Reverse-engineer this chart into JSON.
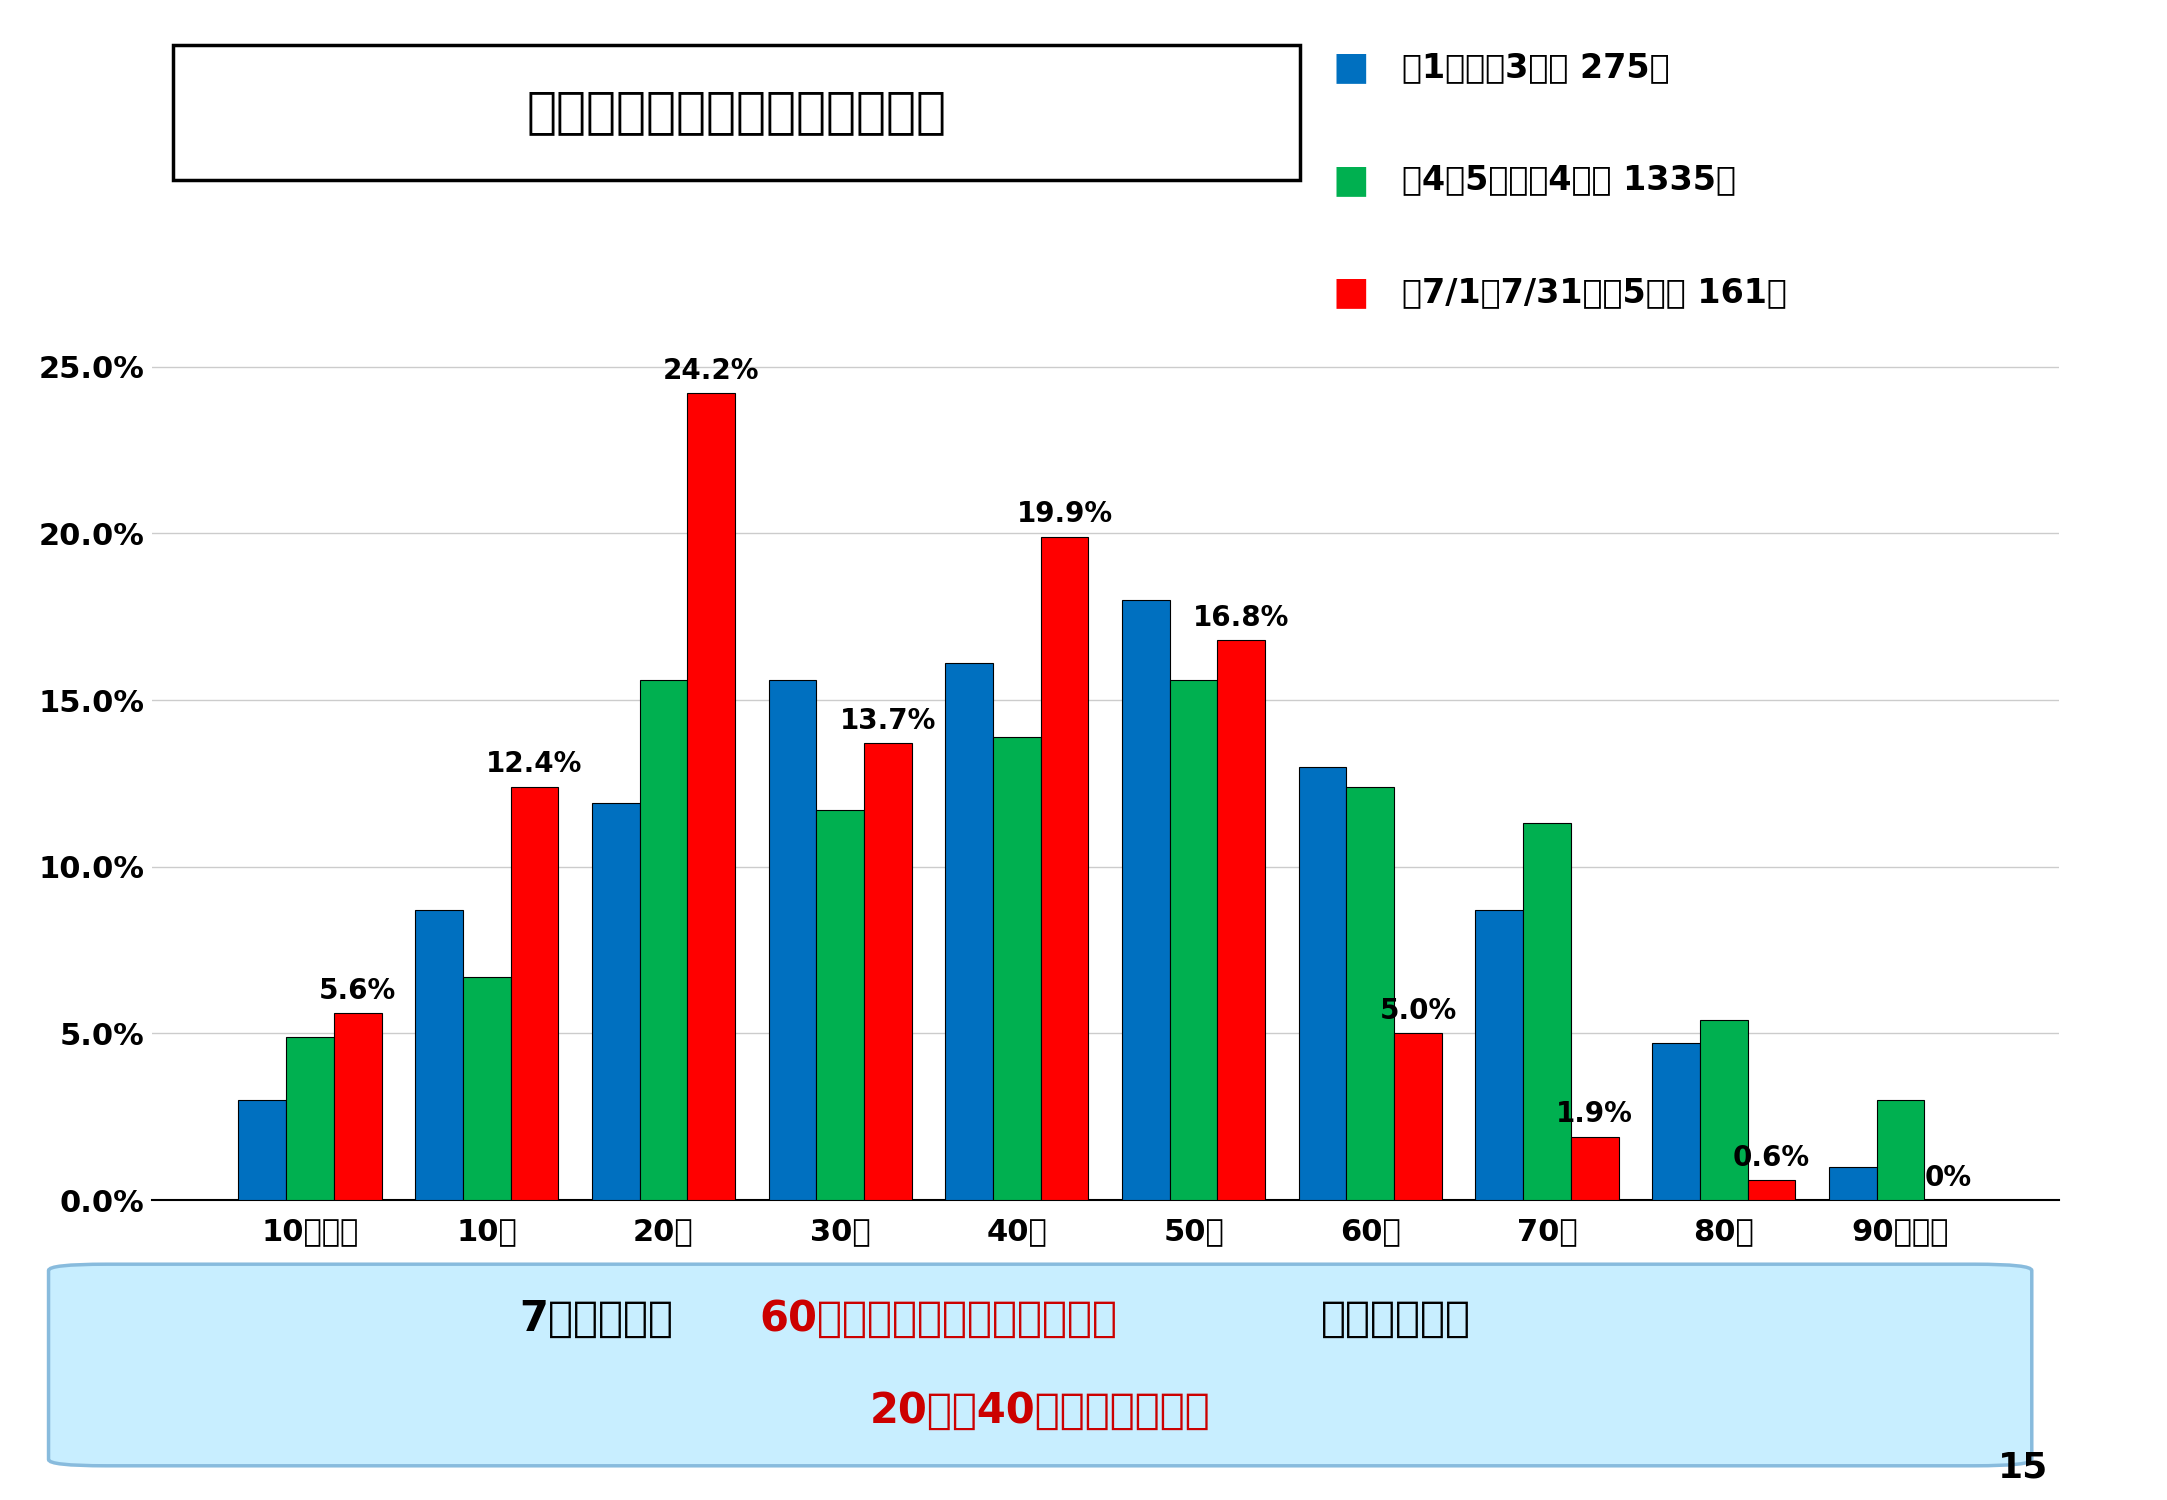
{
  "title": "市内感染者の年代別割合の推移",
  "categories": [
    "10歳未満",
    "10代",
    "20代",
    "30代",
    "40代",
    "50代",
    "60代",
    "70代",
    "80代",
    "90歳以上"
  ],
  "series": [
    {
      "label_sq": "■",
      "label_text": "：1月（第3波） 275人",
      "color": "#0070C0",
      "values": [
        3.0,
        8.7,
        11.9,
        15.6,
        16.1,
        18.0,
        13.0,
        8.7,
        4.7,
        1.0
      ]
    },
    {
      "label_sq": "■",
      "label_text": "：4・5月（第4波） 1335人",
      "color": "#00B050",
      "values": [
        4.9,
        6.7,
        15.6,
        11.7,
        13.9,
        15.6,
        12.4,
        11.3,
        5.4,
        3.0
      ]
    },
    {
      "label_sq": "■",
      "label_text": "：7/1～7/31（第5波） 161人",
      "color": "#FF0000",
      "values": [
        5.6,
        12.4,
        24.2,
        13.7,
        19.9,
        16.8,
        5.0,
        1.9,
        0.6,
        0.0
      ]
    }
  ],
  "ylim": [
    0,
    27
  ],
  "yticks": [
    0.0,
    5.0,
    10.0,
    15.0,
    20.0,
    25.0
  ],
  "ytick_labels": [
    "0.0%",
    "5.0%",
    "10.0%",
    "15.0%",
    "20.0%",
    "25.0%"
  ],
  "red_labels": [
    "5.6%",
    "12.4%",
    "24.2%",
    "13.7%",
    "19.9%",
    "16.8%",
    "5.0%",
    "1.9%",
    "0.6%",
    "0%"
  ],
  "footer_line1_p1": "7月からは、",
  "footer_line1_p2": "60代以上の割合が大きく減少",
  "footer_line1_p3": "している一方",
  "footer_line2": "20代～40代の割合が増加",
  "footer_line1_p2_color": "#CC0000",
  "footer_line2_color": "#CC0000",
  "background_color": "#FFFFFF",
  "footer_bg_color": "#C8EEFF",
  "footer_border_color": "#88BBDD",
  "page_number": "15"
}
